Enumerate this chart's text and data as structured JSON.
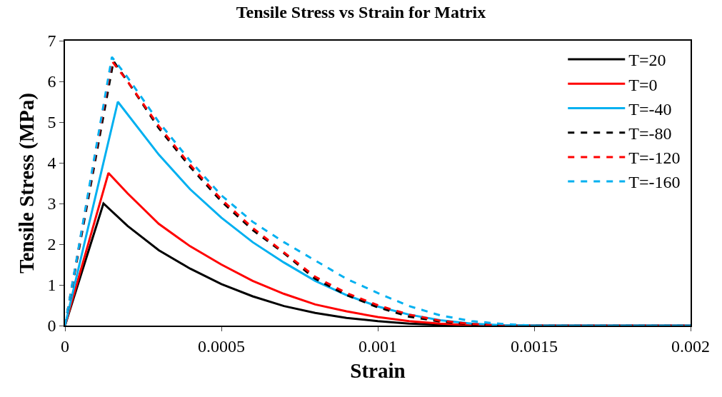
{
  "chart_data": {
    "type": "line",
    "title": "Tensile Stress vs Strain for Matrix",
    "xlabel": "Strain",
    "ylabel": "Tensile Stress (MPa)",
    "xlim": [
      0,
      0.002
    ],
    "xticks": [
      0,
      0.0005,
      0.001,
      0.0015,
      0.002
    ],
    "ylim": [
      0,
      7
    ],
    "yticks": [
      0,
      1,
      2,
      3,
      4,
      5,
      6,
      7
    ],
    "grid": false,
    "legend": "top right",
    "marker": "none",
    "series": [
      {
        "name": "T=20",
        "color": "#000000",
        "line_style": "solid",
        "x": [
          0,
          0.000123,
          0.0002,
          0.0003,
          0.0004,
          0.0005,
          0.0006,
          0.0007,
          0.0008,
          0.0009,
          0.001,
          0.0011,
          0.0012,
          0.0013,
          0.002
        ],
        "values": [
          0,
          3.0,
          2.45,
          1.85,
          1.4,
          1.02,
          0.72,
          0.48,
          0.31,
          0.19,
          0.11,
          0.05,
          0.02,
          0,
          0
        ]
      },
      {
        "name": "T=0",
        "color": "#ff0000",
        "line_style": "solid",
        "x": [
          0,
          0.000139,
          0.0002,
          0.0003,
          0.0004,
          0.0005,
          0.0006,
          0.0007,
          0.0008,
          0.0009,
          0.001,
          0.0011,
          0.0012,
          0.0013,
          0.0014,
          0.002
        ],
        "values": [
          0,
          3.75,
          3.25,
          2.5,
          1.95,
          1.5,
          1.1,
          0.78,
          0.52,
          0.35,
          0.21,
          0.11,
          0.05,
          0.01,
          0,
          0
        ]
      },
      {
        "name": "T=-40",
        "color": "#00b0f0",
        "line_style": "solid",
        "x": [
          0,
          0.000169,
          0.0003,
          0.0004,
          0.0005,
          0.0006,
          0.0007,
          0.0008,
          0.0009,
          0.001,
          0.0011,
          0.0012,
          0.0013,
          0.0014,
          0.0015,
          0.002
        ],
        "values": [
          0,
          5.5,
          4.2,
          3.35,
          2.65,
          2.05,
          1.55,
          1.1,
          0.75,
          0.47,
          0.27,
          0.13,
          0.05,
          0.01,
          0,
          0
        ]
      },
      {
        "name": "T=-80",
        "color": "#000000",
        "line_style": "dashed",
        "x": [
          0,
          0.000155,
          0.0002,
          0.0003,
          0.0004,
          0.0005,
          0.0006,
          0.0007,
          0.0008,
          0.0009,
          0.001,
          0.0011,
          0.0012,
          0.0013,
          0.0014,
          0.002
        ],
        "values": [
          0,
          6.5,
          6.0,
          4.85,
          3.9,
          3.05,
          2.35,
          1.78,
          1.15,
          0.75,
          0.45,
          0.22,
          0.1,
          0.03,
          0,
          0
        ]
      },
      {
        "name": "T=-120",
        "color": "#ff0000",
        "line_style": "dashed",
        "x": [
          0,
          0.00015,
          0.0002,
          0.0003,
          0.0004,
          0.0005,
          0.0006,
          0.0007,
          0.0008,
          0.0009,
          0.001,
          0.0011,
          0.0012,
          0.0013,
          0.0014,
          0.002
        ],
        "values": [
          0,
          6.5,
          6.0,
          4.9,
          3.95,
          3.1,
          2.4,
          1.8,
          1.2,
          0.8,
          0.5,
          0.27,
          0.12,
          0.04,
          0,
          0
        ]
      },
      {
        "name": "T=-160",
        "color": "#00b0f0",
        "line_style": "dashed",
        "x": [
          0,
          0.00015,
          0.0002,
          0.0003,
          0.0004,
          0.0005,
          0.0006,
          0.0007,
          0.0008,
          0.0009,
          0.001,
          0.0011,
          0.0012,
          0.0013,
          0.0014,
          0.0015,
          0.002
        ],
        "values": [
          0,
          6.6,
          6.1,
          5.0,
          4.05,
          3.2,
          2.55,
          2.05,
          1.6,
          1.15,
          0.8,
          0.48,
          0.25,
          0.11,
          0.04,
          0,
          0
        ]
      }
    ]
  }
}
